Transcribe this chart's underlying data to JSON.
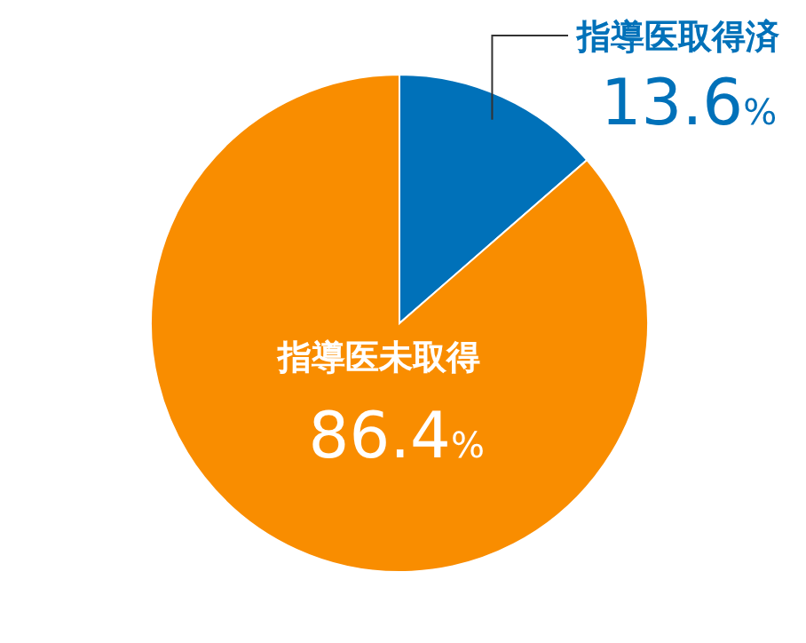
{
  "chart_data": {
    "type": "pie",
    "categories": [
      "指導医取得済",
      "指導医未取得"
    ],
    "values": [
      13.6,
      86.4
    ],
    "colors": [
      "#0071b9",
      "#f98d00"
    ],
    "value_labels": [
      "13.6%",
      "86.4%"
    ]
  }
}
